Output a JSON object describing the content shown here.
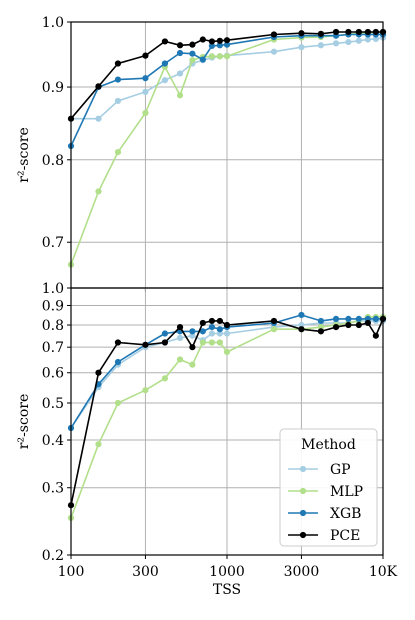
{
  "chart_data": [
    {
      "type": "line",
      "panel": "top",
      "xscale": "log",
      "yscale": "log",
      "xlabel": "",
      "ylabel": "r²-score",
      "xlim": [
        100,
        10000
      ],
      "ylim": [
        0.65,
        1.0
      ],
      "yticks": [
        0.7,
        0.8,
        0.9,
        1.0
      ],
      "ytick_labels": [
        "0.7",
        "0.8",
        "0.9",
        "1.0"
      ],
      "grid": true,
      "series": [
        {
          "name": "GP",
          "color": "#a6cee3",
          "x": [
            100,
            150,
            200,
            300,
            400,
            500,
            600,
            700,
            800,
            900,
            1000,
            2000,
            3000,
            4000,
            5000,
            6000,
            7000,
            8000,
            9000,
            10000
          ],
          "y": [
            0.855,
            0.855,
            0.88,
            0.893,
            0.91,
            0.92,
            0.935,
            0.94,
            0.944,
            0.946,
            0.947,
            0.953,
            0.96,
            0.963,
            0.966,
            0.968,
            0.97,
            0.972,
            0.973,
            0.975
          ]
        },
        {
          "name": "MLP",
          "color": "#b2df8a",
          "x": [
            100,
            150,
            200,
            300,
            400,
            500,
            600,
            700,
            800,
            900,
            1000,
            2000,
            3000,
            4000,
            5000,
            6000,
            7000,
            8000,
            9000,
            10000
          ],
          "y": [
            0.675,
            0.76,
            0.81,
            0.863,
            0.93,
            0.888,
            0.94,
            0.945,
            0.946,
            0.946,
            0.946,
            0.972,
            0.975,
            0.976,
            0.978,
            0.98,
            0.982,
            0.983,
            0.983,
            0.984
          ]
        },
        {
          "name": "XGB",
          "color": "#1f78b4",
          "x": [
            100,
            150,
            200,
            300,
            400,
            500,
            600,
            700,
            800,
            900,
            1000,
            2000,
            3000,
            4000,
            5000,
            6000,
            7000,
            8000,
            9000,
            10000
          ],
          "y": [
            0.818,
            0.9,
            0.911,
            0.913,
            0.935,
            0.951,
            0.95,
            0.941,
            0.962,
            0.963,
            0.964,
            0.976,
            0.978,
            0.978,
            0.978,
            0.98,
            0.98,
            0.98,
            0.98,
            0.98
          ]
        },
        {
          "name": "PCE",
          "color": "#000000",
          "x": [
            100,
            150,
            200,
            300,
            400,
            500,
            600,
            700,
            800,
            900,
            1000,
            2000,
            3000,
            4000,
            5000,
            6000,
            7000,
            8000,
            9000,
            10000
          ],
          "y": [
            0.855,
            0.901,
            0.935,
            0.947,
            0.969,
            0.963,
            0.964,
            0.972,
            0.969,
            0.97,
            0.971,
            0.98,
            0.982,
            0.981,
            0.984,
            0.984,
            0.984,
            0.984,
            0.984,
            0.984
          ]
        }
      ]
    },
    {
      "type": "line",
      "panel": "bottom",
      "xscale": "log",
      "yscale": "log",
      "xlabel": "TSS",
      "ylabel": "r²-score",
      "xlim": [
        100,
        10000
      ],
      "ylim": [
        0.2,
        1.0
      ],
      "xticks": [
        100,
        300,
        1000,
        3000,
        10000
      ],
      "xtick_labels": [
        "100",
        "300",
        "1000",
        "3000",
        "10K"
      ],
      "yticks": [
        0.2,
        0.3,
        0.4,
        0.5,
        0.6,
        0.7,
        0.8,
        0.9,
        1.0
      ],
      "ytick_labels": [
        "0.2",
        "0.3",
        "0.4",
        "0.5",
        "0.6",
        "0.7",
        "0.8",
        "0.9",
        "1.0"
      ],
      "grid": true,
      "legend": {
        "title": "Method",
        "placement": "bottom-right",
        "entries": [
          "GP",
          "MLP",
          "XGB",
          "PCE"
        ]
      },
      "series": [
        {
          "name": "GP",
          "color": "#a6cee3",
          "x": [
            100,
            150,
            200,
            300,
            400,
            500,
            600,
            700,
            800,
            900,
            1000,
            2000,
            3000,
            4000,
            5000,
            6000,
            7000,
            8000,
            9000,
            10000
          ],
          "y": [
            0.43,
            0.55,
            0.63,
            0.7,
            0.72,
            0.74,
            0.75,
            0.73,
            0.76,
            0.76,
            0.76,
            0.79,
            0.8,
            0.81,
            0.81,
            0.81,
            0.82,
            0.82,
            0.82,
            0.82
          ]
        },
        {
          "name": "MLP",
          "color": "#b2df8a",
          "x": [
            100,
            150,
            200,
            300,
            400,
            500,
            600,
            700,
            800,
            900,
            1000,
            2000,
            3000,
            4000,
            5000,
            6000,
            7000,
            8000,
            9000,
            10000
          ],
          "y": [
            0.25,
            0.39,
            0.5,
            0.54,
            0.58,
            0.65,
            0.63,
            0.72,
            0.72,
            0.72,
            0.68,
            0.78,
            0.78,
            0.79,
            0.8,
            0.81,
            0.82,
            0.84,
            0.84,
            0.84
          ]
        },
        {
          "name": "XGB",
          "color": "#1f78b4",
          "x": [
            100,
            150,
            200,
            300,
            400,
            500,
            600,
            700,
            800,
            900,
            1000,
            2000,
            3000,
            4000,
            5000,
            6000,
            7000,
            8000,
            9000,
            10000
          ],
          "y": [
            0.43,
            0.56,
            0.64,
            0.71,
            0.76,
            0.77,
            0.77,
            0.77,
            0.79,
            0.78,
            0.79,
            0.81,
            0.85,
            0.82,
            0.83,
            0.83,
            0.83,
            0.83,
            0.83,
            0.83
          ]
        },
        {
          "name": "PCE",
          "color": "#000000",
          "x": [
            100,
            150,
            200,
            300,
            400,
            500,
            600,
            700,
            800,
            900,
            1000,
            2000,
            3000,
            4000,
            5000,
            6000,
            7000,
            8000,
            9000,
            10000
          ],
          "y": [
            0.27,
            0.6,
            0.72,
            0.71,
            0.72,
            0.79,
            0.7,
            0.81,
            0.82,
            0.82,
            0.8,
            0.82,
            0.78,
            0.77,
            0.79,
            0.8,
            0.8,
            0.81,
            0.75,
            0.83
          ]
        }
      ]
    }
  ]
}
